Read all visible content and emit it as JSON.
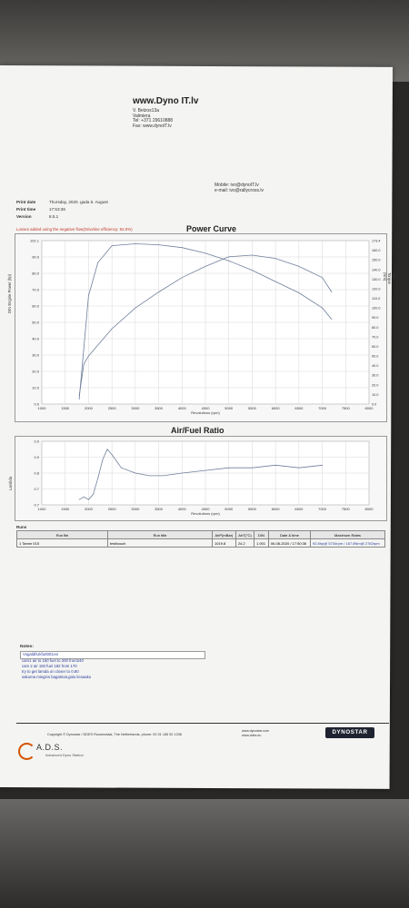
{
  "header": {
    "site": "www.Dyno IT.lv",
    "address": [
      "V. Belzos13a",
      "Valmiera",
      "Tel:    +371 29610888",
      "Fax:   www.dynoIT.lv"
    ],
    "contact": [
      "Mobile:   ivo@dynoIT.lv",
      "e-mail:   ivo@rallycross.lv"
    ]
  },
  "meta": {
    "print_date_label": "Print date",
    "print_date": "Thursday, 2020. gada 6. August",
    "print_time_label": "Print time",
    "print_time": "17:53:36",
    "version_label": "Version",
    "version": "8.5.1"
  },
  "losses_note": "Losses added using the negative flow(Driveline efficiency: 92.0%)",
  "power_chart": {
    "title": "Power Curve",
    "ylabel": "DIN Engine Power (hp)",
    "y2label": "DIN Torque (Nm)",
    "xlabel": "Revolutions (rpm)",
    "x_ticks": [
      "1000",
      "1500",
      "2000",
      "2500",
      "3000",
      "3500",
      "4000",
      "4500",
      "5000",
      "5500",
      "6000",
      "6500",
      "7000",
      "7500",
      "8000"
    ],
    "y_ticks": [
      "0.0",
      "10.0",
      "20.0",
      "30.0",
      "40.0",
      "50.0",
      "60.0",
      "70.0",
      "80.0",
      "90.0",
      "102.1"
    ],
    "y2_ticks": [
      "0.0",
      "10.0",
      "20.0",
      "30.0",
      "40.0",
      "50.0",
      "60.0",
      "70.0",
      "80.0",
      "90.0",
      "100.0",
      "110.0",
      "120.0",
      "130.0",
      "140.0",
      "150.0",
      "160.0",
      "173.4"
    ]
  },
  "afr_chart": {
    "title": "Air/Fuel Ratio",
    "ylabel": "Lambda",
    "xlabel": "Revolutions (rpm)",
    "x_ticks": [
      "1000",
      "1500",
      "2000",
      "2500",
      "3000",
      "3500",
      "4000",
      "4500",
      "5000",
      "5500",
      "6000",
      "6500",
      "7000",
      "7500",
      "8000"
    ],
    "y_ticks": [
      "0.7",
      "0.7",
      "0.8",
      "0.9",
      "0.9"
    ]
  },
  "chart_data": [
    {
      "type": "line",
      "title": "Power Curve",
      "xlabel": "Revolutions (rpm)",
      "ylabel": "DIN Engine Power (hp)",
      "xlim": [
        1000,
        8000
      ],
      "ylim": [
        0,
        102.1
      ],
      "y2lim": [
        0,
        173.4
      ],
      "series": [
        {
          "axis": "y2",
          "x": [
            1800,
            1900,
            2000,
            2200,
            2500,
            3000,
            3500,
            4000,
            4500,
            5000,
            5500,
            6000,
            6500,
            7000,
            7200
          ],
          "values": [
            5,
            60,
            115,
            150,
            168,
            170,
            169,
            166,
            160,
            152,
            142,
            130,
            118,
            102,
            90
          ]
        },
        {
          "axis": "y",
          "x": [
            1800,
            1900,
            2000,
            2500,
            3000,
            3500,
            4000,
            4500,
            5000,
            5500,
            6000,
            6500,
            7000,
            7200
          ],
          "values": [
            5,
            25,
            30,
            47,
            60,
            70,
            79,
            86,
            92,
            93,
            91,
            86,
            79,
            70
          ]
        }
      ]
    },
    {
      "type": "line",
      "title": "Air/Fuel Ratio",
      "xlabel": "Revolutions (rpm)",
      "ylabel": "Lambda",
      "xlim": [
        1000,
        8000
      ],
      "ylim": [
        0.68,
        0.92
      ],
      "series": [
        {
          "x": [
            1800,
            1900,
            2000,
            2100,
            2200,
            2300,
            2400,
            2500,
            2700,
            3000,
            3300,
            3600,
            4000,
            4500,
            5000,
            5500,
            6000,
            6500,
            7000
          ],
          "values": [
            0.7,
            0.71,
            0.7,
            0.72,
            0.78,
            0.85,
            0.89,
            0.87,
            0.82,
            0.8,
            0.79,
            0.79,
            0.8,
            0.81,
            0.82,
            0.82,
            0.83,
            0.82,
            0.83
          ]
        }
      ]
    }
  ],
  "runs": {
    "label": "Runs",
    "headers": [
      "Run file",
      "Run title",
      "AirP(mBar)",
      "AirT(°C)",
      "DIN",
      "Date & time",
      "Maximum Rates"
    ],
    "rows": [
      [
        "1 Tamm 015",
        "testbouch",
        "1019.8",
        "24.2",
        "1.001",
        "06-08-2020 / 17:50:36",
        "92.8hp@ 5734rpm / 167.8Nm@ 2782rpm"
      ]
    ]
  },
  "notes": {
    "label": "Notes:",
    "box": "Vsgaldi\\Ukfu0001vvi",
    "lines": [
      "cam1 air to 150 fuel to 200 from240",
      "cam 2 air 150  fuel 182 from 170",
      "try to get lamda on closer to 0.80",
      "sakuma miegins bagatinat,galu liesaaku"
    ]
  },
  "footer": {
    "copyright": "Copyright © Dynostar / DDES Roosendaal, The Netherlands, phone: 00 31 165 52 1336",
    "links": [
      "www.dynostar.com",
      "www.ddes.eu"
    ],
    "dyno_logo": "DYNOSTAR",
    "ads_logo": "A.D.S.",
    "ads_sub": "Advanced Dyno Station"
  }
}
